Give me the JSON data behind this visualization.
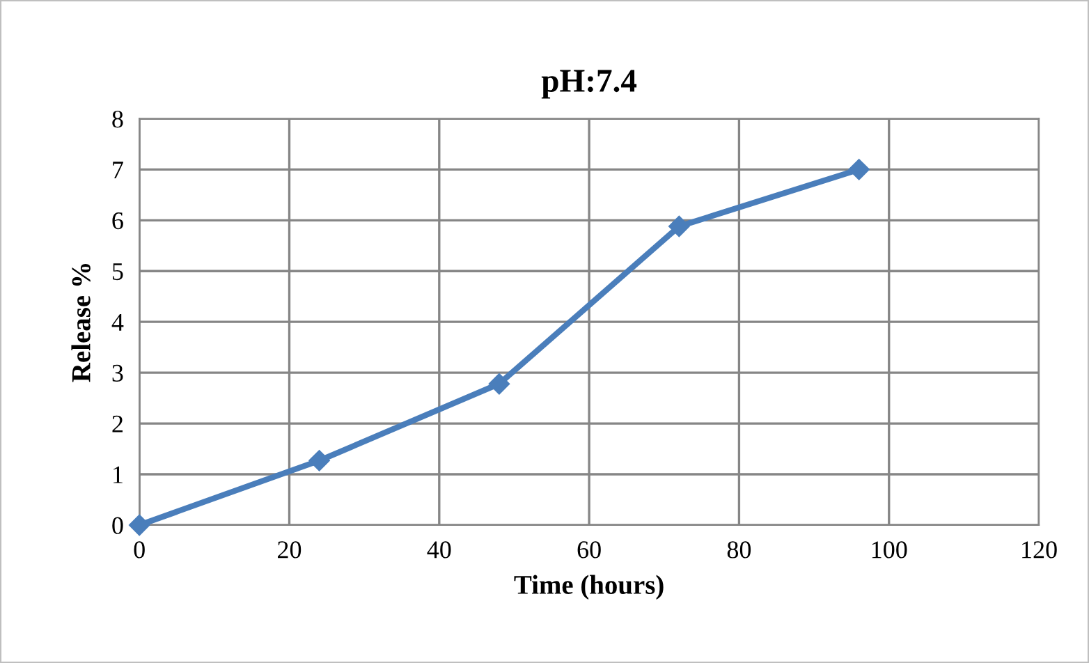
{
  "chart_data": {
    "type": "line",
    "title": "pH:7.4",
    "xlabel": "Time (hours)",
    "ylabel": "Release %",
    "x": [
      0,
      24,
      48,
      72,
      96
    ],
    "series": [
      {
        "color": "#4a7ebb",
        "values": [
          0,
          1.27,
          2.78,
          5.88,
          7.0
        ]
      }
    ],
    "xlim": [
      0,
      120
    ],
    "xticks": [
      0,
      20,
      40,
      60,
      80,
      100,
      120
    ],
    "ylim": [
      0,
      8
    ],
    "yticks": [
      0,
      1,
      2,
      3,
      4,
      5,
      6,
      7,
      8
    ],
    "grid": true,
    "marker": "diamond",
    "line_style": "solid",
    "legend": false
  }
}
